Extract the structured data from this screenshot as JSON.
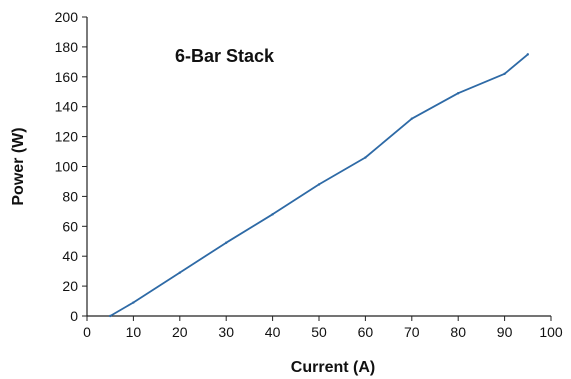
{
  "chart_data": {
    "type": "line",
    "title": "",
    "annotation": "6-Bar Stack",
    "xlabel": "Current (A)",
    "ylabel": "Power (W)",
    "xlim": [
      0,
      100
    ],
    "ylim": [
      0,
      200
    ],
    "xticks": [
      0,
      10,
      20,
      30,
      40,
      50,
      60,
      70,
      80,
      90,
      100
    ],
    "yticks": [
      0,
      20,
      40,
      60,
      80,
      100,
      120,
      140,
      160,
      180,
      200
    ],
    "grid": false,
    "legend": "none",
    "series": [
      {
        "color": "#2e6aa6",
        "x": [
          5,
          10,
          20,
          30,
          40,
          50,
          60,
          70,
          80,
          90,
          95
        ],
        "y": [
          0,
          9,
          29,
          49,
          68,
          88,
          106,
          132,
          149,
          162,
          175
        ]
      }
    ]
  }
}
